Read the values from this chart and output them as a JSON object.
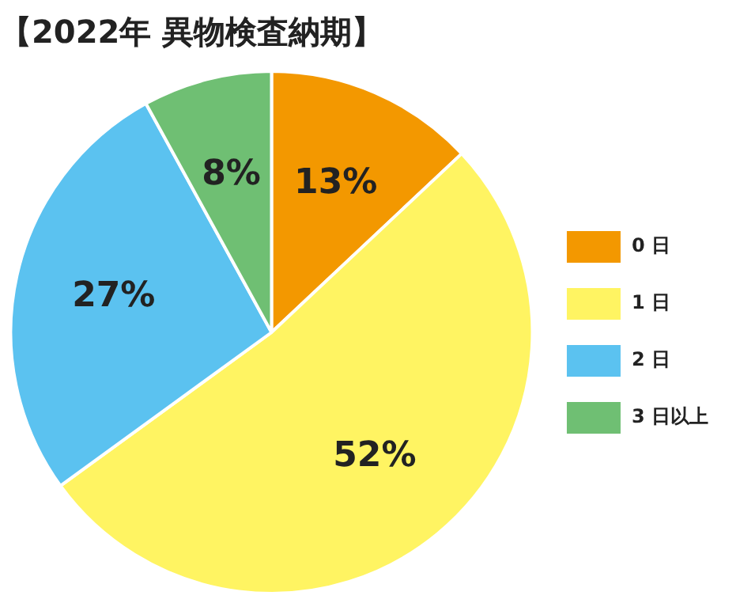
{
  "chart_data": {
    "type": "pie",
    "title": "【2022年 異物検査納期】",
    "categories": [
      "0 日",
      "1 日",
      "2 日",
      "3 日以上"
    ],
    "values": [
      13,
      52,
      27,
      8
    ],
    "colors": [
      "#f39800",
      "#fff462",
      "#5bc2f0",
      "#6fbf73"
    ],
    "value_labels": [
      "13%",
      "52%",
      "27%",
      "8%"
    ],
    "legend": "right"
  }
}
